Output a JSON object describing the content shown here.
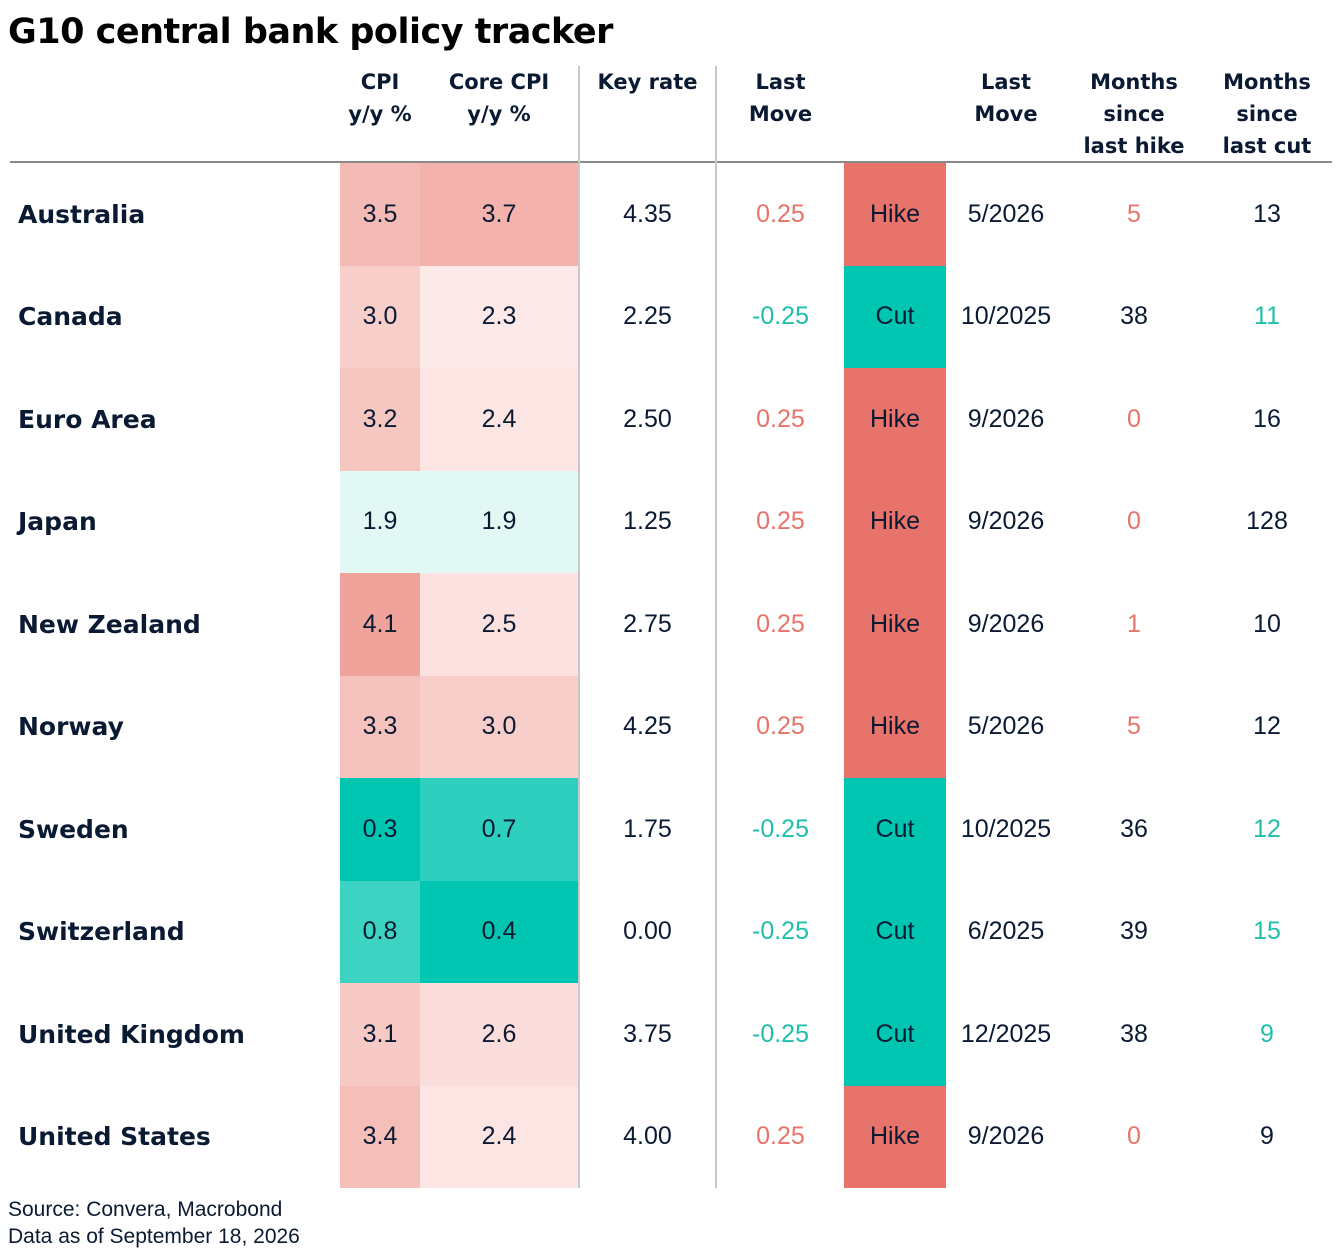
{
  "title": "G10 central bank policy tracker",
  "columns": {
    "cpi": [
      "CPI",
      "y/y %"
    ],
    "core_cpi": [
      "Core CPI",
      "y/y %"
    ],
    "key_rate": [
      "Key rate"
    ],
    "last_move": [
      "Last",
      "Move"
    ],
    "last_move_date": [
      "Last",
      "Move"
    ],
    "months_since_hike": [
      "Months",
      "since",
      "last hike"
    ],
    "months_since_cut": [
      "Months",
      "since",
      "last cut"
    ]
  },
  "colors": {
    "hike": "#e8736a",
    "cut": "#00c5b0",
    "text": "#0b1a33",
    "hike_text": "#e8736a",
    "cut_text": "#1fbfab"
  },
  "chart_data": {
    "type": "table",
    "title": "G10 central bank policy tracker",
    "rows": [
      {
        "country": "Australia",
        "cpi": "3.5",
        "core_cpi": "3.7",
        "key_rate": "4.35",
        "last_move": "0.25",
        "direction": "Hike",
        "date": "5/2026",
        "months_since_hike": "5",
        "months_since_cut": "13"
      },
      {
        "country": "Canada",
        "cpi": "3.0",
        "core_cpi": "2.3",
        "key_rate": "2.25",
        "last_move": "-0.25",
        "direction": "Cut",
        "date": "10/2025",
        "months_since_hike": "38",
        "months_since_cut": "11"
      },
      {
        "country": "Euro Area",
        "cpi": "3.2",
        "core_cpi": "2.4",
        "key_rate": "2.50",
        "last_move": "0.25",
        "direction": "Hike",
        "date": "9/2026",
        "months_since_hike": "0",
        "months_since_cut": "16"
      },
      {
        "country": "Japan",
        "cpi": "1.9",
        "core_cpi": "1.9",
        "key_rate": "1.25",
        "last_move": "0.25",
        "direction": "Hike",
        "date": "9/2026",
        "months_since_hike": "0",
        "months_since_cut": "128"
      },
      {
        "country": "New Zealand",
        "cpi": "4.1",
        "core_cpi": "2.5",
        "key_rate": "2.75",
        "last_move": "0.25",
        "direction": "Hike",
        "date": "9/2026",
        "months_since_hike": "1",
        "months_since_cut": "10"
      },
      {
        "country": "Norway",
        "cpi": "3.3",
        "core_cpi": "3.0",
        "key_rate": "4.25",
        "last_move": "0.25",
        "direction": "Hike",
        "date": "5/2026",
        "months_since_hike": "5",
        "months_since_cut": "12"
      },
      {
        "country": "Sweden",
        "cpi": "0.3",
        "core_cpi": "0.7",
        "key_rate": "1.75",
        "last_move": "-0.25",
        "direction": "Cut",
        "date": "10/2025",
        "months_since_hike": "36",
        "months_since_cut": "12"
      },
      {
        "country": "Switzerland",
        "cpi": "0.8",
        "core_cpi": "0.4",
        "key_rate": "0.00",
        "last_move": "-0.25",
        "direction": "Cut",
        "date": "6/2025",
        "months_since_hike": "39",
        "months_since_cut": "15"
      },
      {
        "country": "United Kingdom",
        "cpi": "3.1",
        "core_cpi": "2.6",
        "key_rate": "3.75",
        "last_move": "-0.25",
        "direction": "Cut",
        "date": "12/2025",
        "months_since_hike": "38",
        "months_since_cut": "9"
      },
      {
        "country": "United States",
        "cpi": "3.4",
        "core_cpi": "2.4",
        "key_rate": "4.00",
        "last_move": "0.25",
        "direction": "Hike",
        "date": "9/2026",
        "months_since_hike": "0",
        "months_since_cut": "9"
      }
    ]
  },
  "source": [
    "Source: Convera, Macrobond",
    "Data as of September 18, 2026"
  ]
}
